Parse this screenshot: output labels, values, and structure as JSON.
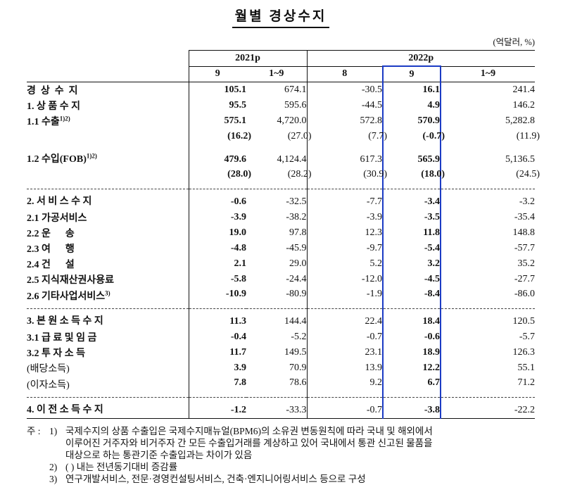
{
  "title": "월별 경상수지",
  "unit_note": "(억달러, %)",
  "table": {
    "col_groups": [
      {
        "label": "2021p",
        "span": 2
      },
      {
        "label": "2022p",
        "span": 3
      }
    ],
    "col_headers": [
      "9",
      "1~9",
      "8",
      "9",
      "1~9"
    ],
    "highlight_col": 3,
    "highlight_color": "#1b3bc4",
    "rows": [
      {
        "label": "경  상  수  지",
        "level": 0,
        "bold": true,
        "values": [
          "105.1",
          "674.1",
          "-30.5",
          "16.1",
          "241.4"
        ]
      },
      {
        "label": "1. 상 품 수 지",
        "level": 0,
        "bold": true,
        "values": [
          "95.5",
          "595.6",
          "-44.5",
          "4.9",
          "146.2"
        ]
      },
      {
        "label": "1.1 수출",
        "sup": "1)2)",
        "level": 1,
        "bold": true,
        "values": [
          "575.1",
          "4,720.0",
          "572.8",
          "570.9",
          "5,282.8"
        ]
      },
      {
        "label": "",
        "level": 1,
        "bold": false,
        "values": [
          "(16.2)",
          "(27.0)",
          "(7.7)",
          "(-0.7)",
          "(11.9)"
        ]
      },
      {
        "label": "1.2 수입(FOB)",
        "sup": "1)2)",
        "level": 1,
        "bold": true,
        "tall": true,
        "values": [
          "479.6",
          "4,124.4",
          "617.3",
          "565.9",
          "5,136.5"
        ]
      },
      {
        "label": "",
        "level": 1,
        "bold": false,
        "sep_after": true,
        "values": [
          "(28.0)",
          "(28.2)",
          "(30.9)",
          "(18.0)",
          "(24.5)"
        ]
      },
      {
        "label": "2. 서 비 스 수 지",
        "level": 0,
        "bold": true,
        "values": [
          "-0.6",
          "-32.5",
          "-7.7",
          "-3.4",
          "-3.2"
        ]
      },
      {
        "label": "2.1 가공서비스",
        "level": 1,
        "bold": true,
        "values": [
          "-3.9",
          "-38.2",
          "-3.9",
          "-3.5",
          "-35.4"
        ]
      },
      {
        "label": "2.2 운      송",
        "level": 1,
        "bold": true,
        "values": [
          "19.0",
          "97.8",
          "12.3",
          "11.8",
          "148.8"
        ]
      },
      {
        "label": "2.3 여      행",
        "level": 1,
        "bold": true,
        "values": [
          "-4.8",
          "-45.9",
          "-9.7",
          "-5.4",
          "-57.7"
        ]
      },
      {
        "label": "2.4 건      설",
        "level": 1,
        "bold": true,
        "values": [
          "2.1",
          "29.0",
          "5.2",
          "3.2",
          "35.2"
        ]
      },
      {
        "label": "2.5 지식재산권사용료",
        "level": 1,
        "bold": true,
        "values": [
          "-5.8",
          "-24.4",
          "-12.0",
          "-4.5",
          "-27.7"
        ]
      },
      {
        "label": "2.6 기타사업서비스",
        "sup": "3)",
        "level": 1,
        "bold": true,
        "sep_after": true,
        "values": [
          "-10.9",
          "-80.9",
          "-1.9",
          "-8.4",
          "-86.0"
        ]
      },
      {
        "label": "3. 본 원 소 득 수 지",
        "level": 0,
        "bold": true,
        "values": [
          "11.3",
          "144.4",
          "22.4",
          "18.4",
          "120.5"
        ]
      },
      {
        "label": "3.1 급 료 및 임 금",
        "level": 1,
        "bold": true,
        "values": [
          "-0.4",
          "-5.2",
          "-0.7",
          "-0.6",
          "-5.7"
        ]
      },
      {
        "label": "3.2 투 자 소 득",
        "level": 1,
        "bold": true,
        "values": [
          "11.7",
          "149.5",
          "23.1",
          "18.9",
          "126.3"
        ]
      },
      {
        "label": "(배당소득)",
        "level": 2,
        "bold": false,
        "values": [
          "3.9",
          "70.9",
          "13.9",
          "12.2",
          "55.1"
        ]
      },
      {
        "label": "(이자소득)",
        "level": 2,
        "bold": false,
        "sep_after": true,
        "values": [
          "7.8",
          "78.6",
          "9.2",
          "6.7",
          "71.2"
        ]
      },
      {
        "label": "4. 이 전 소 득 수 지",
        "level": 0,
        "bold": true,
        "values": [
          "-1.2",
          "-33.3",
          "-0.7",
          "-3.8",
          "-22.2"
        ]
      }
    ]
  },
  "footnotes": {
    "prefix": "주 : ",
    "items": [
      {
        "marker": "1)",
        "lines": [
          "국제수지의 상품 수출입은 국제수지매뉴얼(BPM6)의 소유권 변동원칙에 따라 국내 및 해외에서",
          "이루어진 거주자와 비거주자 간 모든 수출입거래를 계상하고 있어 국내에서 통관 신고된 물품을",
          "대상으로 하는 통관기준 수출입과는 차이가 있음"
        ]
      },
      {
        "marker": "2)",
        "lines": [
          "( ) 내는 전년동기대비 증감률"
        ]
      },
      {
        "marker": "3)",
        "lines": [
          "연구개발서비스, 전문·경영컨설팅서비스, 건축·엔지니어링서비스 등으로 구성"
        ]
      }
    ]
  }
}
